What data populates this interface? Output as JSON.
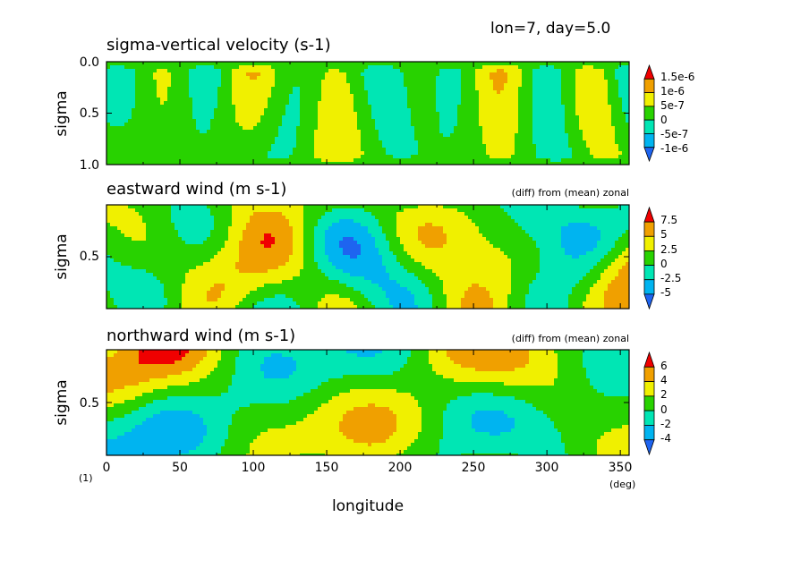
{
  "header": {
    "text": "lon=7, day=5.0"
  },
  "colors": [
    "#1e64f0",
    "#00b4f0",
    "#00e6b4",
    "#28d200",
    "#f0f000",
    "#f0a000",
    "#f00000"
  ],
  "chart_data": [
    {
      "type": "heatmap",
      "title": "sigma-vertical velocity (s-1)",
      "subtitle": "",
      "ylabel": "sigma",
      "yticks": [
        "0.0",
        "0.5",
        "1.0"
      ],
      "levels": [
        "1.5e-6",
        "1e-6",
        "5e-7",
        "0",
        "-5e-7",
        "-1e-6"
      ],
      "xlim": [
        0,
        356
      ],
      "ylim": [
        1.0,
        0.0
      ]
    },
    {
      "type": "heatmap",
      "title": "eastward wind (m s-1)",
      "subtitle": "(diff) from (mean) zonal",
      "ylabel": "sigma",
      "yticks": [
        "0.5"
      ],
      "levels": [
        "7.5",
        "5",
        "2.5",
        "0",
        "-2.5",
        "-5"
      ],
      "xlim": [
        0,
        356
      ]
    },
    {
      "type": "heatmap",
      "title": "northward wind (m s-1)",
      "subtitle": "(diff) from (mean) zonal",
      "ylabel": "sigma",
      "yticks": [
        "0.5"
      ],
      "levels": [
        "6",
        "4",
        "2",
        "0",
        "-2",
        "-4"
      ],
      "xlim": [
        0,
        356
      ],
      "xlabel": "longitude",
      "xticks": [
        "0",
        "50",
        "100",
        "150",
        "200",
        "250",
        "300",
        "350"
      ],
      "xunit": "(deg)",
      "yunit": "(1)"
    }
  ]
}
